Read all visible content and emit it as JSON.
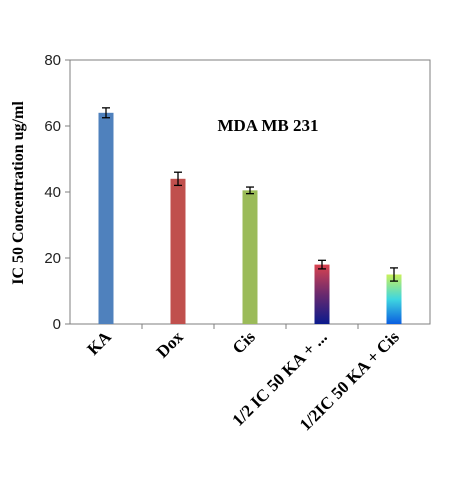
{
  "chart_data": {
    "type": "bar",
    "title": "MDA MB 231",
    "ylabel": "IC 50 Concentration ug/ml",
    "xlabel": "",
    "ylim": [
      0,
      80
    ],
    "yticks": [
      0,
      20,
      40,
      60,
      80
    ],
    "grid": false,
    "categories": [
      "KA",
      "Dox",
      "Cis",
      "1/2 IC 50 KA + ...",
      "1/2IC 50 KA + Cis"
    ],
    "values": [
      64,
      44,
      40.5,
      18,
      15
    ],
    "errors": [
      1.5,
      2,
      1,
      1.3,
      2
    ],
    "colors": [
      "#4f81bd",
      "#c0504d",
      "#9bbb59",
      "gradient-red-to-navy",
      "gradient-lime-to-blue"
    ],
    "gradients": [
      null,
      null,
      null,
      [
        "#d9434f",
        "#6a2a6e",
        "#0a1a8c"
      ],
      [
        "#c9f05a",
        "#3fd6e0",
        "#0a5ee0"
      ]
    ],
    "error_bar_color": "#000000"
  }
}
